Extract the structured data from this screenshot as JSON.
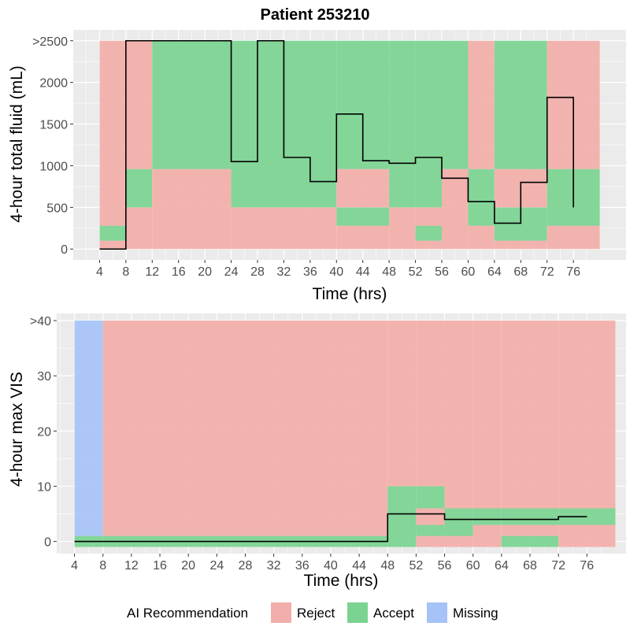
{
  "title": "Patient 253210",
  "colors": {
    "reject": "#f2aeaa",
    "accept": "#7bd391",
    "missing": "#a6c3f7",
    "panel": "#ebebeb",
    "grid": "#ffffff",
    "line": "#000000"
  },
  "legend": {
    "title": "AI Recommendation",
    "items": [
      {
        "key": "reject",
        "label": "Reject"
      },
      {
        "key": "accept",
        "label": "Accept"
      },
      {
        "key": "missing",
        "label": "Missing"
      }
    ]
  },
  "chart_data": [
    {
      "type": "heatmap+step",
      "xlabel": "Time (hrs)",
      "ylabel": "4-hour total fluid (mL)",
      "xlim": [
        0,
        84
      ],
      "ylim": [
        -130,
        2630
      ],
      "xticks": [
        4,
        8,
        12,
        16,
        20,
        24,
        28,
        32,
        36,
        40,
        44,
        48,
        52,
        56,
        60,
        64,
        68,
        72,
        76
      ],
      "yticks": [
        {
          "value": 0,
          "label": "0"
        },
        {
          "value": 500,
          "label": "500"
        },
        {
          "value": 1000,
          "label": "1000"
        },
        {
          "value": 1500,
          "label": "1500"
        },
        {
          "value": 2000,
          "label": "2000"
        },
        {
          "value": 2500,
          "label": ">2500"
        }
      ],
      "tiles": [
        {
          "t0": 4,
          "t1": 8,
          "cells": [
            [
              0,
              100,
              "reject"
            ],
            [
              100,
              280,
              "accept"
            ],
            [
              280,
              2500,
              "reject"
            ]
          ]
        },
        {
          "t0": 8,
          "t1": 12,
          "cells": [
            [
              0,
              500,
              "reject"
            ],
            [
              500,
              960,
              "accept"
            ],
            [
              960,
              2500,
              "reject"
            ]
          ]
        },
        {
          "t0": 12,
          "t1": 24,
          "cells": [
            [
              0,
              960,
              "reject"
            ],
            [
              960,
              2500,
              "accept"
            ]
          ]
        },
        {
          "t0": 24,
          "t1": 40,
          "cells": [
            [
              0,
              500,
              "reject"
            ],
            [
              500,
              2500,
              "accept"
            ]
          ]
        },
        {
          "t0": 40,
          "t1": 48,
          "cells": [
            [
              0,
              280,
              "reject"
            ],
            [
              280,
              500,
              "accept"
            ],
            [
              500,
              960,
              "reject"
            ],
            [
              960,
              2500,
              "accept"
            ]
          ]
        },
        {
          "t0": 48,
          "t1": 52,
          "cells": [
            [
              0,
              500,
              "reject"
            ],
            [
              500,
              2500,
              "accept"
            ]
          ]
        },
        {
          "t0": 52,
          "t1": 56,
          "cells": [
            [
              0,
              100,
              "reject"
            ],
            [
              100,
              280,
              "accept"
            ],
            [
              280,
              500,
              "reject"
            ],
            [
              500,
              2500,
              "accept"
            ]
          ]
        },
        {
          "t0": 56,
          "t1": 60,
          "cells": [
            [
              0,
              960,
              "reject"
            ],
            [
              960,
              2500,
              "accept"
            ]
          ]
        },
        {
          "t0": 60,
          "t1": 64,
          "cells": [
            [
              0,
              280,
              "reject"
            ],
            [
              280,
              960,
              "accept"
            ],
            [
              960,
              2500,
              "reject"
            ]
          ]
        },
        {
          "t0": 64,
          "t1": 72,
          "cells": [
            [
              0,
              100,
              "reject"
            ],
            [
              100,
              500,
              "accept"
            ],
            [
              500,
              960,
              "reject"
            ],
            [
              960,
              2500,
              "accept"
            ]
          ]
        },
        {
          "t0": 72,
          "t1": 80,
          "cells": [
            [
              0,
              280,
              "reject"
            ],
            [
              280,
              960,
              "accept"
            ],
            [
              960,
              2500,
              "reject"
            ]
          ]
        }
      ],
      "series": {
        "name": "4-hour total fluid",
        "steps": [
          {
            "x0": 4,
            "x1": 8,
            "y": 0
          },
          {
            "x0": 8,
            "x1": 24,
            "y": 2500
          },
          {
            "x0": 24,
            "x1": 28,
            "y": 1050
          },
          {
            "x0": 28,
            "x1": 32,
            "y": 2500
          },
          {
            "x0": 32,
            "x1": 36,
            "y": 1100
          },
          {
            "x0": 36,
            "x1": 40,
            "y": 810
          },
          {
            "x0": 40,
            "x1": 44,
            "y": 1620
          },
          {
            "x0": 44,
            "x1": 48,
            "y": 1060
          },
          {
            "x0": 48,
            "x1": 52,
            "y": 1030
          },
          {
            "x0": 52,
            "x1": 56,
            "y": 1100
          },
          {
            "x0": 56,
            "x1": 60,
            "y": 850
          },
          {
            "x0": 60,
            "x1": 64,
            "y": 570
          },
          {
            "x0": 64,
            "x1": 68,
            "y": 310
          },
          {
            "x0": 68,
            "x1": 72,
            "y": 800
          },
          {
            "x0": 72,
            "x1": 76,
            "y": 1820
          }
        ],
        "end": {
          "x": 76,
          "y": 500
        }
      }
    },
    {
      "type": "heatmap+step",
      "xlabel": "Time (hrs)",
      "ylabel": "4-hour max VIS",
      "xlim": [
        1.5,
        81.5
      ],
      "ylim": [
        -2.2,
        41.3
      ],
      "xticks": [
        4,
        8,
        12,
        16,
        20,
        24,
        28,
        32,
        36,
        40,
        44,
        48,
        52,
        56,
        60,
        64,
        68,
        72,
        76
      ],
      "yticks": [
        {
          "value": 0,
          "label": "0"
        },
        {
          "value": 10,
          "label": "10"
        },
        {
          "value": 20,
          "label": "20"
        },
        {
          "value": 30,
          "label": "30"
        },
        {
          "value": 40,
          "label": ">40"
        }
      ],
      "tiles": [
        {
          "t0": 4,
          "t1": 8,
          "cells": [
            [
              -1,
              1,
              "accept"
            ],
            [
              1,
              40,
              "missing"
            ]
          ]
        },
        {
          "t0": 8,
          "t1": 48,
          "cells": [
            [
              -1,
              1,
              "accept"
            ],
            [
              1,
              40,
              "reject"
            ]
          ]
        },
        {
          "t0": 48,
          "t1": 52,
          "cells": [
            [
              -1,
              10,
              "accept"
            ],
            [
              10,
              40,
              "reject"
            ]
          ]
        },
        {
          "t0": 52,
          "t1": 56,
          "cells": [
            [
              -1,
              1,
              "reject"
            ],
            [
              1,
              3,
              "accept"
            ],
            [
              3,
              6,
              "reject"
            ],
            [
              6,
              10,
              "accept"
            ],
            [
              10,
              40,
              "reject"
            ]
          ]
        },
        {
          "t0": 56,
          "t1": 60,
          "cells": [
            [
              -1,
              1,
              "reject"
            ],
            [
              1,
              3,
              "accept"
            ],
            [
              3,
              6,
              "accept"
            ],
            [
              6,
              40,
              "reject"
            ]
          ]
        },
        {
          "t0": 60,
          "t1": 64,
          "cells": [
            [
              -1,
              3,
              "reject"
            ],
            [
              3,
              6,
              "accept"
            ],
            [
              6,
              40,
              "reject"
            ]
          ]
        },
        {
          "t0": 64,
          "t1": 72,
          "cells": [
            [
              -1,
              1,
              "accept"
            ],
            [
              1,
              3,
              "reject"
            ],
            [
              3,
              6,
              "accept"
            ],
            [
              6,
              40,
              "reject"
            ]
          ]
        },
        {
          "t0": 72,
          "t1": 80,
          "cells": [
            [
              -1,
              3,
              "reject"
            ],
            [
              3,
              6,
              "accept"
            ],
            [
              6,
              40,
              "reject"
            ]
          ]
        }
      ],
      "series": {
        "name": "4-hour max VIS",
        "steps": [
          {
            "x0": 4,
            "x1": 48,
            "y": 0
          },
          {
            "x0": 48,
            "x1": 56,
            "y": 5
          },
          {
            "x0": 56,
            "x1": 72,
            "y": 4
          },
          {
            "x0": 72,
            "x1": 76,
            "y": 4.5
          }
        ],
        "end": {
          "x": 76,
          "y": 4.5
        }
      }
    }
  ]
}
